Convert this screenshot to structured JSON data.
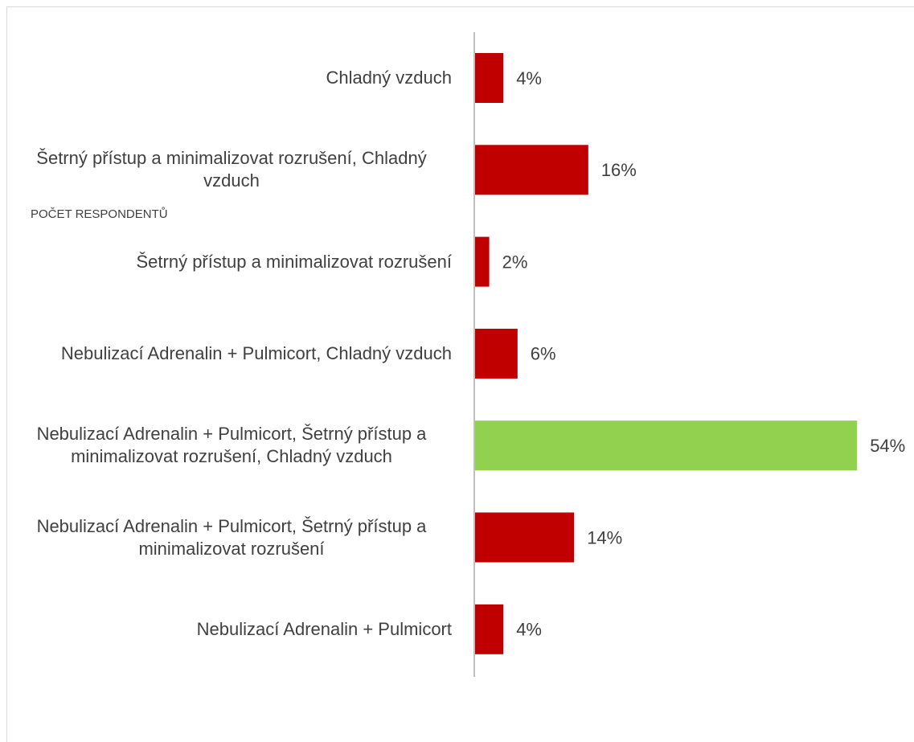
{
  "chart_data": {
    "type": "bar",
    "orientation": "horizontal",
    "annotation": "POČET RESPONDENTŮ",
    "categories": [
      "Chladný vzduch",
      "Šetrný přístup a minimalizovat rozrušení, Chladný vzduch",
      "Šetrný přístup a minimalizovat rozrušení",
      "Nebulizací Adrenalin + Pulmicort, Chladný vzduch",
      "Nebulizací Adrenalin + Pulmicort, Šetrný přístup a minimalizovat rozrušení, Chladný vzduch",
      "Nebulizací Adrenalin + Pulmicort, Šetrný přístup a minimalizovat rozrušení",
      "Nebulizací Adrenalin + Pulmicort"
    ],
    "values": [
      4,
      16,
      2,
      6,
      54,
      14,
      4
    ],
    "value_labels": [
      "4%",
      "16%",
      "2%",
      "6%",
      "54%",
      "14%",
      "4%"
    ],
    "colors": [
      "#c00000",
      "#c00000",
      "#c00000",
      "#c00000",
      "#92d050",
      "#c00000",
      "#c00000"
    ]
  }
}
